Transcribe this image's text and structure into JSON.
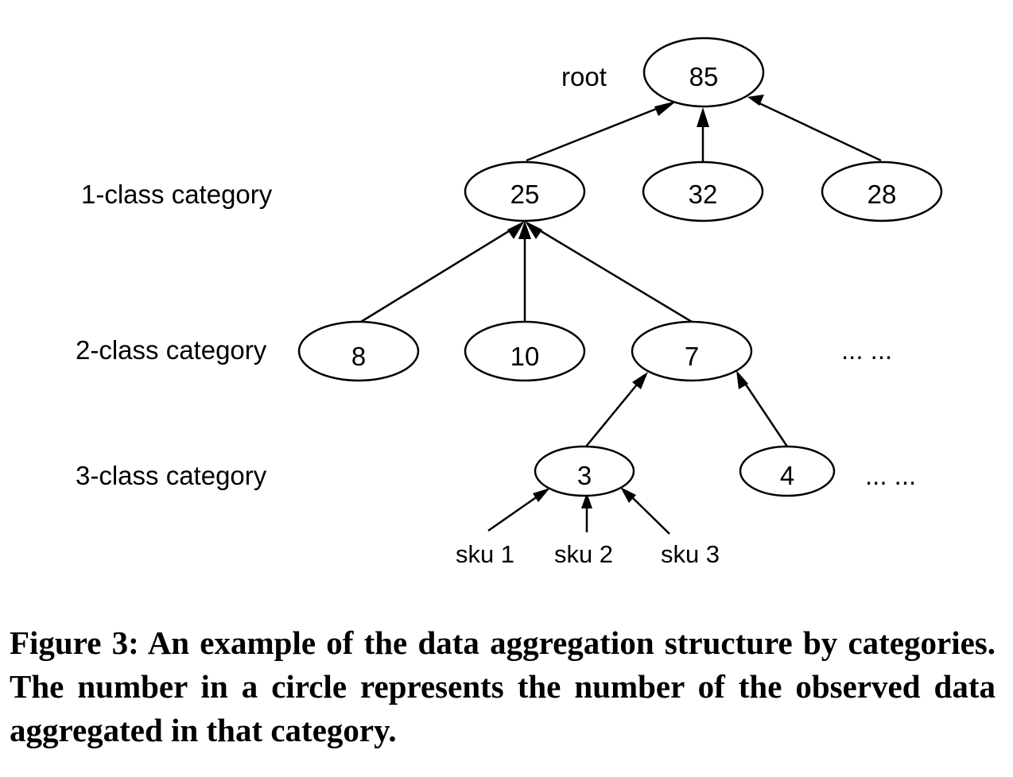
{
  "levels": {
    "root": "root",
    "l1": "1-class category",
    "l2": "2-class category",
    "l3": "3-class category"
  },
  "nodes": {
    "root": "85",
    "c1_a": "25",
    "c1_b": "32",
    "c1_c": "28",
    "c2_a": "8",
    "c2_b": "10",
    "c2_c": "7",
    "c3_a": "3",
    "c3_b": "4"
  },
  "ellipsis": {
    "l2": "... ...",
    "l3": "... ..."
  },
  "skus": [
    "sku 1",
    "sku 2",
    "sku 3"
  ],
  "caption": "Figure 3: An example of the data aggregation structure by categories. The number in a circle represents the number of the observed data aggregated in that category."
}
